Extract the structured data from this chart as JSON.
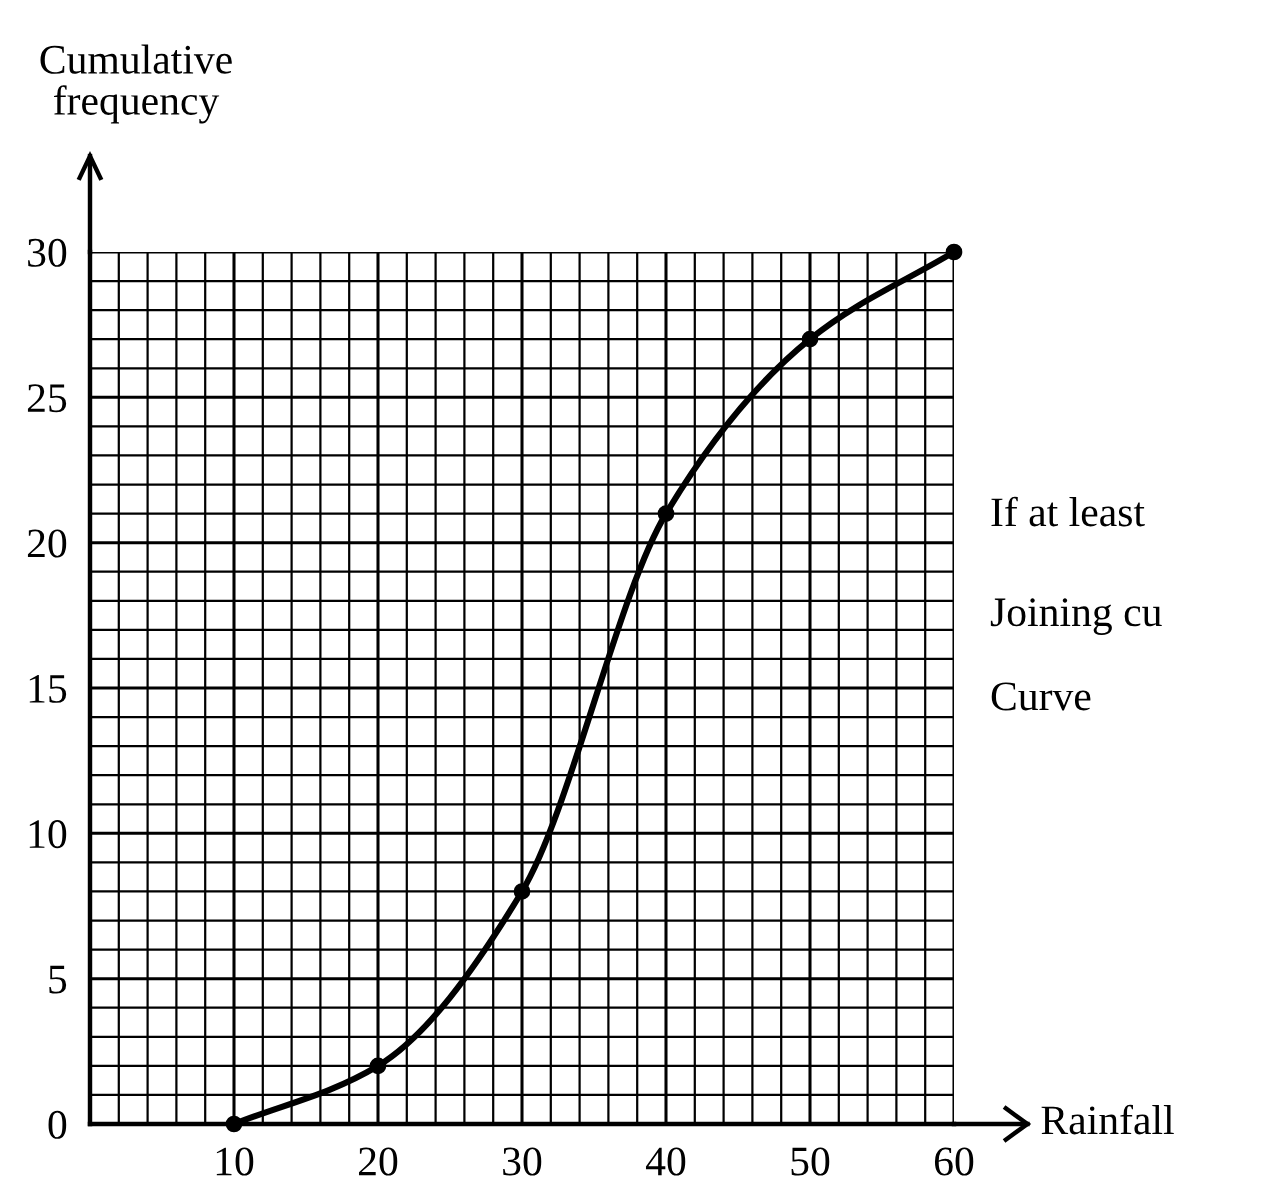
{
  "chart_data": {
    "type": "line",
    "xlabel": "Rainfall",
    "ylabel": "Cumulative\nfrequency",
    "x": [
      10,
      20,
      30,
      40,
      50,
      60
    ],
    "series": [
      {
        "color": "#000000",
        "values": [
          0,
          2,
          8,
          21,
          27,
          30
        ]
      }
    ],
    "xlim": [
      0,
      60
    ],
    "ylim": [
      0,
      30
    ],
    "xticks": [
      10,
      20,
      30,
      40,
      50,
      60
    ],
    "yticks": [
      0,
      5,
      10,
      15,
      20,
      25,
      30
    ],
    "grid": true,
    "marker": "circle",
    "line_style": "solid",
    "annotations": [
      "If at least",
      "Joining cu",
      "Curve"
    ]
  }
}
